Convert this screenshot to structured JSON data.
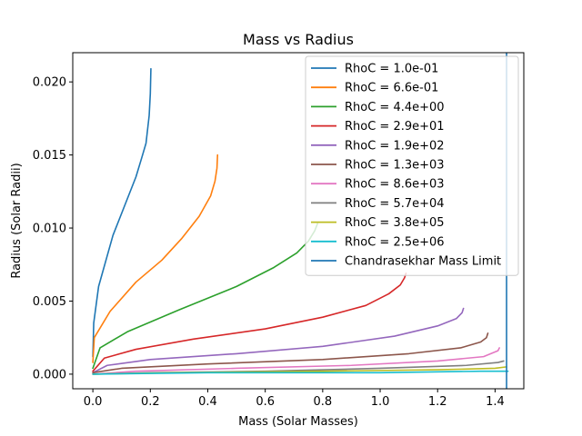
{
  "chart_data": {
    "type": "line",
    "title": "Mass vs Radius",
    "xlabel": "Mass (Solar Masses)",
    "ylabel": "Radius (Solar Radii)",
    "xlim": [
      -0.07,
      1.5
    ],
    "ylim": [
      -0.001,
      0.022
    ],
    "xticks": [
      0.0,
      0.2,
      0.4,
      0.6,
      0.8,
      1.0,
      1.2,
      1.4
    ],
    "xtick_labels": [
      "0.0",
      "0.2",
      "0.4",
      "0.6",
      "0.8",
      "1.0",
      "1.2",
      "1.4"
    ],
    "yticks": [
      0.0,
      0.005,
      0.01,
      0.015,
      0.02
    ],
    "ytick_labels": [
      "0.000",
      "0.005",
      "0.010",
      "0.015",
      "0.020"
    ],
    "grid": false,
    "legend_position": "top-right",
    "series": [
      {
        "name": "RhoC = 1.0e-01",
        "color": "#1f77b4",
        "points": [
          [
            0.0,
            0.0012
          ],
          [
            0.003,
            0.0035
          ],
          [
            0.02,
            0.006
          ],
          [
            0.07,
            0.0095
          ],
          [
            0.15,
            0.0135
          ],
          [
            0.17,
            0.0148
          ],
          [
            0.185,
            0.0158
          ],
          [
            0.196,
            0.0177
          ],
          [
            0.2,
            0.0192
          ],
          [
            0.202,
            0.0209
          ]
        ]
      },
      {
        "name": "RhoC = 6.6e-01",
        "color": "#ff7f0e",
        "points": [
          [
            0.0,
            0.0008
          ],
          [
            0.005,
            0.0025
          ],
          [
            0.06,
            0.0043
          ],
          [
            0.15,
            0.0063
          ],
          [
            0.24,
            0.0078
          ],
          [
            0.31,
            0.0093
          ],
          [
            0.37,
            0.0108
          ],
          [
            0.41,
            0.0122
          ],
          [
            0.425,
            0.0132
          ],
          [
            0.432,
            0.0141
          ],
          [
            0.434,
            0.015
          ]
        ]
      },
      {
        "name": "RhoC = 4.4e+00",
        "color": "#2ca02c",
        "points": [
          [
            0.0,
            0.0004
          ],
          [
            0.025,
            0.0018
          ],
          [
            0.12,
            0.0029
          ],
          [
            0.3,
            0.0044
          ],
          [
            0.5,
            0.006
          ],
          [
            0.63,
            0.0073
          ],
          [
            0.71,
            0.0083
          ],
          [
            0.75,
            0.0091
          ],
          [
            0.772,
            0.0098
          ],
          [
            0.782,
            0.0103
          ]
        ]
      },
      {
        "name": "RhoC = 2.9e+01",
        "color": "#d62728",
        "points": [
          [
            0.0,
            0.0002
          ],
          [
            0.04,
            0.0011
          ],
          [
            0.15,
            0.0017
          ],
          [
            0.35,
            0.0024
          ],
          [
            0.6,
            0.0031
          ],
          [
            0.8,
            0.0039
          ],
          [
            0.95,
            0.0047
          ],
          [
            1.03,
            0.0055
          ],
          [
            1.07,
            0.0061
          ],
          [
            1.085,
            0.0066
          ],
          [
            1.09,
            0.0069
          ]
        ]
      },
      {
        "name": "RhoC = 1.9e+02",
        "color": "#9467bd",
        "points": [
          [
            0.0,
            0.0001
          ],
          [
            0.05,
            0.0006
          ],
          [
            0.2,
            0.001
          ],
          [
            0.5,
            0.0014
          ],
          [
            0.8,
            0.0019
          ],
          [
            1.05,
            0.0026
          ],
          [
            1.2,
            0.0033
          ],
          [
            1.265,
            0.0038
          ],
          [
            1.285,
            0.0042
          ],
          [
            1.29,
            0.0045
          ]
        ]
      },
      {
        "name": "RhoC = 1.3e+03",
        "color": "#8c564b",
        "points": [
          [
            0.0,
            0.0001
          ],
          [
            0.1,
            0.0004
          ],
          [
            0.4,
            0.0007
          ],
          [
            0.8,
            0.001
          ],
          [
            1.1,
            0.0014
          ],
          [
            1.28,
            0.0018
          ],
          [
            1.35,
            0.0022
          ],
          [
            1.37,
            0.0025
          ],
          [
            1.375,
            0.0028
          ]
        ]
      },
      {
        "name": "RhoC = 8.6e+03",
        "color": "#e377c2",
        "points": [
          [
            0.0,
            0.0
          ],
          [
            0.15,
            0.0002
          ],
          [
            0.5,
            0.0004
          ],
          [
            0.9,
            0.0006
          ],
          [
            1.2,
            0.0009
          ],
          [
            1.36,
            0.0012
          ],
          [
            1.41,
            0.0016
          ],
          [
            1.415,
            0.0018
          ]
        ]
      },
      {
        "name": "RhoC = 5.7e+04",
        "color": "#7f7f7f",
        "points": [
          [
            0.0,
            0.0
          ],
          [
            0.2,
            0.0001
          ],
          [
            0.6,
            0.0002
          ],
          [
            1.0,
            0.0004
          ],
          [
            1.3,
            0.0006
          ],
          [
            1.41,
            0.0008
          ],
          [
            1.43,
            0.0009
          ]
        ]
      },
      {
        "name": "RhoC = 3.8e+05",
        "color": "#bcbd22",
        "points": [
          [
            0.0,
            0.0
          ],
          [
            0.3,
            0.0001
          ],
          [
            0.8,
            0.0002
          ],
          [
            1.2,
            0.0003
          ],
          [
            1.4,
            0.0004
          ],
          [
            1.44,
            0.0005
          ]
        ]
      },
      {
        "name": "RhoC = 2.5e+06",
        "color": "#17becf",
        "points": [
          [
            0.0,
            0.0
          ],
          [
            0.4,
            0.0001
          ],
          [
            1.0,
            0.0001
          ],
          [
            1.35,
            0.0002
          ],
          [
            1.445,
            0.0002
          ]
        ]
      }
    ],
    "reference_lines": [
      {
        "name": "Chandrasekhar Mass Limit",
        "orientation": "vertical",
        "x": 1.44,
        "color": "#1f77b4"
      }
    ]
  }
}
